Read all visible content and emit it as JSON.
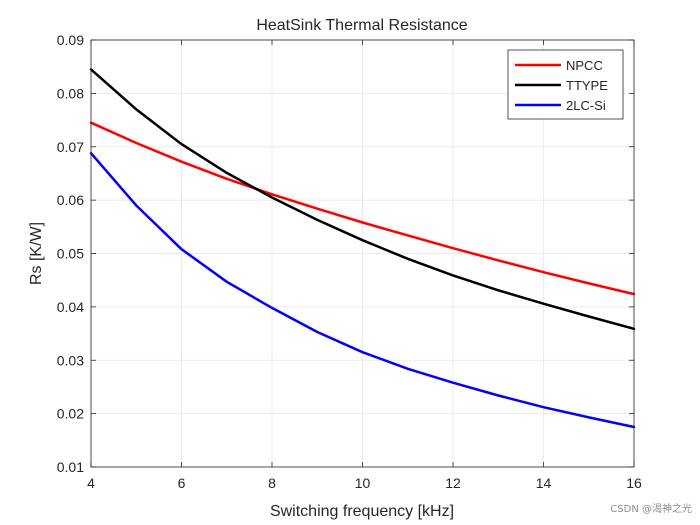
{
  "chart_data": {
    "type": "line",
    "title": "HeatSink Thermal Resistance",
    "xlabel": "Switching frequency [kHz]",
    "ylabel": "Rs [K/W]",
    "xlim": [
      4,
      16
    ],
    "ylim": [
      0.01,
      0.09
    ],
    "xticks": [
      4,
      6,
      8,
      10,
      12,
      14,
      16
    ],
    "yticks": [
      0.01,
      0.02,
      0.03,
      0.04,
      0.05,
      0.06,
      0.07,
      0.08,
      0.09
    ],
    "xtick_labels": [
      "4",
      "6",
      "8",
      "10",
      "12",
      "14",
      "16"
    ],
    "ytick_labels": [
      "0.01",
      "0.02",
      "0.03",
      "0.04",
      "0.05",
      "0.06",
      "0.07",
      "0.08",
      "0.09"
    ],
    "grid": true,
    "legend_position": "top-right",
    "x": [
      4,
      5,
      6,
      7,
      8,
      9,
      10,
      11,
      12,
      13,
      14,
      15,
      16
    ],
    "series": [
      {
        "name": "NPCC",
        "color": "#ff0000",
        "values": [
          0.0745,
          0.0707,
          0.0672,
          0.064,
          0.0611,
          0.0584,
          0.0558,
          0.0534,
          0.051,
          0.0487,
          0.0465,
          0.0444,
          0.0424
        ]
      },
      {
        "name": "TTYPE",
        "color": "#000000",
        "values": [
          0.0845,
          0.077,
          0.0705,
          0.0651,
          0.0605,
          0.0563,
          0.0525,
          0.049,
          0.0459,
          0.0431,
          0.0406,
          0.0382,
          0.0359
        ]
      },
      {
        "name": "2LC-Si",
        "color": "#0000ff",
        "values": [
          0.0688,
          0.059,
          0.0508,
          0.0447,
          0.0398,
          0.0353,
          0.0315,
          0.0284,
          0.0258,
          0.0234,
          0.0212,
          0.0193,
          0.0175
        ]
      }
    ]
  },
  "watermark": "CSDN @渴神之光"
}
